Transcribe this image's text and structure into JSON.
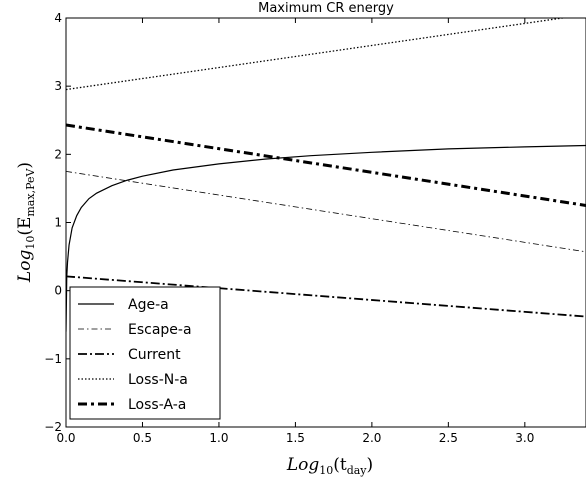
{
  "chart_data": {
    "type": "line",
    "title": "Maximum CR energy",
    "xlabel": {
      "main": "Log",
      "base": "10",
      "open": "(t",
      "sub": "day",
      "close": ")"
    },
    "ylabel": {
      "main": "Log",
      "base": "10",
      "open": "(E",
      "sub": "max,PeV",
      "close": ")"
    },
    "xlim": [
      0.0,
      3.4
    ],
    "ylim": [
      -2,
      4
    ],
    "xticks": [
      0.0,
      0.5,
      1.0,
      1.5,
      2.0,
      2.5,
      3.0
    ],
    "xtick_labels": [
      "0.0",
      "0.5",
      "1.0",
      "1.5",
      "2.0",
      "2.5",
      "3.0"
    ],
    "yticks": [
      -2,
      -1,
      0,
      1,
      2,
      3,
      4
    ],
    "ytick_labels": [
      "−2",
      "−1",
      "0",
      "1",
      "2",
      "3",
      "4"
    ],
    "legend_position": "bottom-left",
    "series": [
      {
        "name": "Age-a",
        "style": "solid",
        "width": 1.2,
        "x": [
          0.0,
          0.005,
          0.01,
          0.02,
          0.04,
          0.07,
          0.1,
          0.15,
          0.2,
          0.3,
          0.4,
          0.5,
          0.7,
          1.0,
          1.3,
          1.6,
          2.0,
          2.5,
          3.0,
          3.4
        ],
        "y": [
          -0.6,
          0.2,
          0.42,
          0.67,
          0.92,
          1.1,
          1.22,
          1.35,
          1.43,
          1.54,
          1.62,
          1.68,
          1.77,
          1.86,
          1.93,
          1.98,
          2.03,
          2.08,
          2.11,
          2.13
        ]
      },
      {
        "name": "Escape-a",
        "style": "dashdot-thin",
        "width": 0.8,
        "x": [
          0.0,
          3.4
        ],
        "y": [
          1.75,
          0.57
        ]
      },
      {
        "name": "Current",
        "style": "dashdot",
        "width": 1.8,
        "x": [
          0.0,
          3.4
        ],
        "y": [
          0.21,
          -0.38
        ]
      },
      {
        "name": "Loss-N-a",
        "style": "dotted",
        "width": 1.3,
        "x": [
          0.0,
          3.4
        ],
        "y": [
          2.95,
          4.05
        ]
      },
      {
        "name": "Loss-A-a",
        "style": "dashdot-thick",
        "width": 3.0,
        "x": [
          0.0,
          3.4
        ],
        "y": [
          2.43,
          1.25
        ]
      }
    ]
  }
}
